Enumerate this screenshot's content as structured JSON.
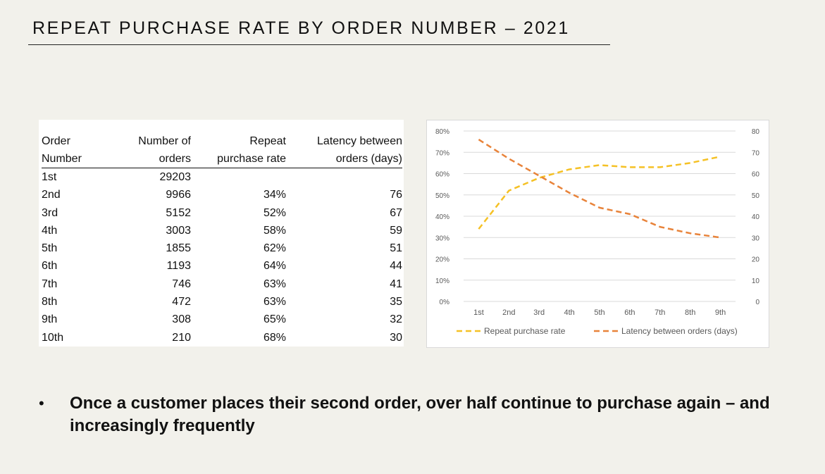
{
  "slide": {
    "title": "REPEAT PURCHASE RATE BY ORDER NUMBER – 2021",
    "bullet": "•",
    "takeaway": "Once a customer places their second order, over half continue to purchase again – and increasingly frequently"
  },
  "table": {
    "headers": {
      "order_l1": "Order",
      "order_l2": "Number",
      "orders_l1": "Number of",
      "orders_l2": "orders",
      "rate_l1": "Repeat",
      "rate_l2": "purchase rate",
      "latency_l1": "Latency between",
      "latency_l2": "orders (days)"
    },
    "rows": [
      {
        "order": "1st",
        "orders": "29203",
        "rate": "",
        "latency": ""
      },
      {
        "order": "2nd",
        "orders": "9966",
        "rate": "34%",
        "latency": "76"
      },
      {
        "order": "3rd",
        "orders": "5152",
        "rate": "52%",
        "latency": "67"
      },
      {
        "order": "4th",
        "orders": "3003",
        "rate": "58%",
        "latency": "59"
      },
      {
        "order": "5th",
        "orders": "1855",
        "rate": "62%",
        "latency": "51"
      },
      {
        "order": "6th",
        "orders": "1193",
        "rate": "64%",
        "latency": "44"
      },
      {
        "order": "7th",
        "orders": "746",
        "rate": "63%",
        "latency": "41"
      },
      {
        "order": "8th",
        "orders": "472",
        "rate": "63%",
        "latency": "35"
      },
      {
        "order": "9th",
        "orders": "308",
        "rate": "65%",
        "latency": "32"
      },
      {
        "order": "10th",
        "orders": "210",
        "rate": "68%",
        "latency": "30"
      }
    ]
  },
  "chart_data": {
    "type": "line",
    "categories": [
      "1st",
      "2nd",
      "3rd",
      "4th",
      "5th",
      "6th",
      "7th",
      "8th",
      "9th"
    ],
    "series": [
      {
        "name": "Repeat purchase rate",
        "axis": "left",
        "color": "#f5c125",
        "values": [
          0.34,
          0.52,
          0.58,
          0.62,
          0.64,
          0.63,
          0.63,
          0.65,
          0.68
        ]
      },
      {
        "name": "Latency between orders (days)",
        "axis": "right",
        "color": "#e8833a",
        "values": [
          76,
          67,
          59,
          51,
          44,
          41,
          35,
          32,
          30
        ]
      }
    ],
    "left_axis": {
      "min": 0,
      "max": 0.8,
      "ticks": [
        "0%",
        "10%",
        "20%",
        "30%",
        "40%",
        "50%",
        "60%",
        "70%",
        "80%"
      ]
    },
    "right_axis": {
      "min": 0,
      "max": 80,
      "ticks": [
        "0",
        "10",
        "20",
        "30",
        "40",
        "50",
        "60",
        "70",
        "80"
      ]
    },
    "grid": true,
    "legend_position": "bottom",
    "line_style": "dashed"
  }
}
